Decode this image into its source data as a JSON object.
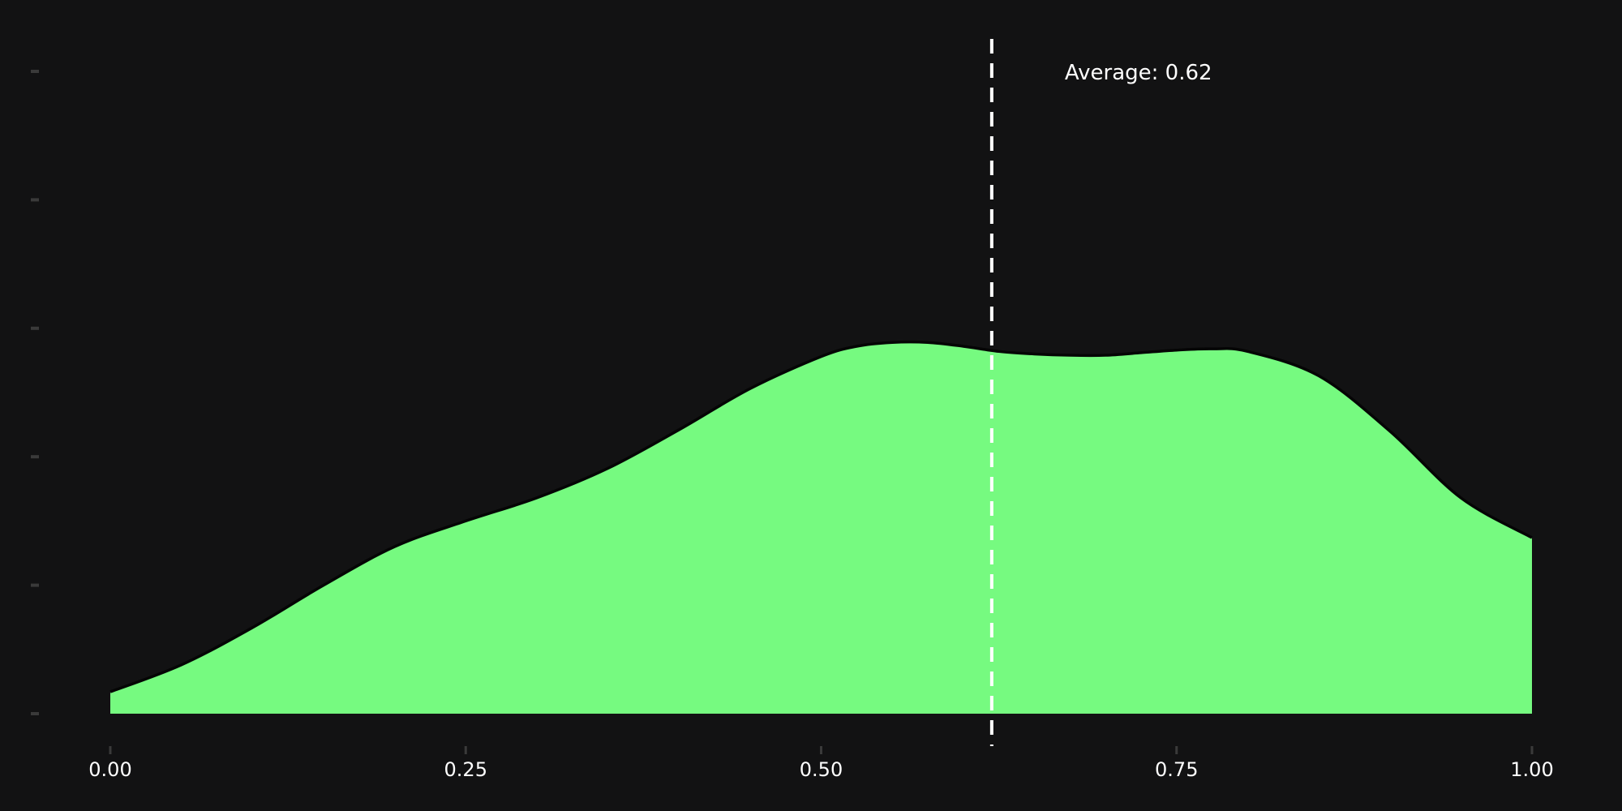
{
  "chart_data": {
    "type": "area",
    "title": "",
    "xlabel": "",
    "ylabel": "",
    "xlim": [
      0,
      1
    ],
    "ylim": [
      0,
      5
    ],
    "x_ticks": [
      0,
      0.25,
      0.5,
      0.75,
      1
    ],
    "x_tick_labels": [
      "0.00",
      "0.25",
      "0.50",
      "0.75",
      "1.00"
    ],
    "y_ticks": [
      0,
      1,
      2,
      3,
      4,
      5
    ],
    "y_tick_labels": [
      "",
      "",
      "",
      "",
      "",
      ""
    ],
    "grid": false,
    "legend": "none",
    "series": [
      {
        "color": "#76fa80",
        "x": [
          0.0,
          0.05,
          0.1,
          0.15,
          0.2,
          0.25,
          0.3,
          0.35,
          0.4,
          0.45,
          0.5,
          0.525,
          0.55,
          0.575,
          0.6,
          0.625,
          0.65,
          0.675,
          0.7,
          0.725,
          0.75,
          0.775,
          0.8,
          0.85,
          0.9,
          0.95,
          1.0
        ],
        "y": [
          0.17,
          0.38,
          0.67,
          1.0,
          1.3,
          1.5,
          1.68,
          1.91,
          2.21,
          2.53,
          2.78,
          2.86,
          2.89,
          2.89,
          2.86,
          2.82,
          2.8,
          2.79,
          2.79,
          2.81,
          2.83,
          2.84,
          2.82,
          2.63,
          2.2,
          1.68,
          1.37
        ]
      }
    ],
    "annotations": [
      {
        "type": "vline",
        "x": 0.62,
        "style": "dashed",
        "color": "#ffffff",
        "label": "Average: 0.62"
      }
    ]
  }
}
